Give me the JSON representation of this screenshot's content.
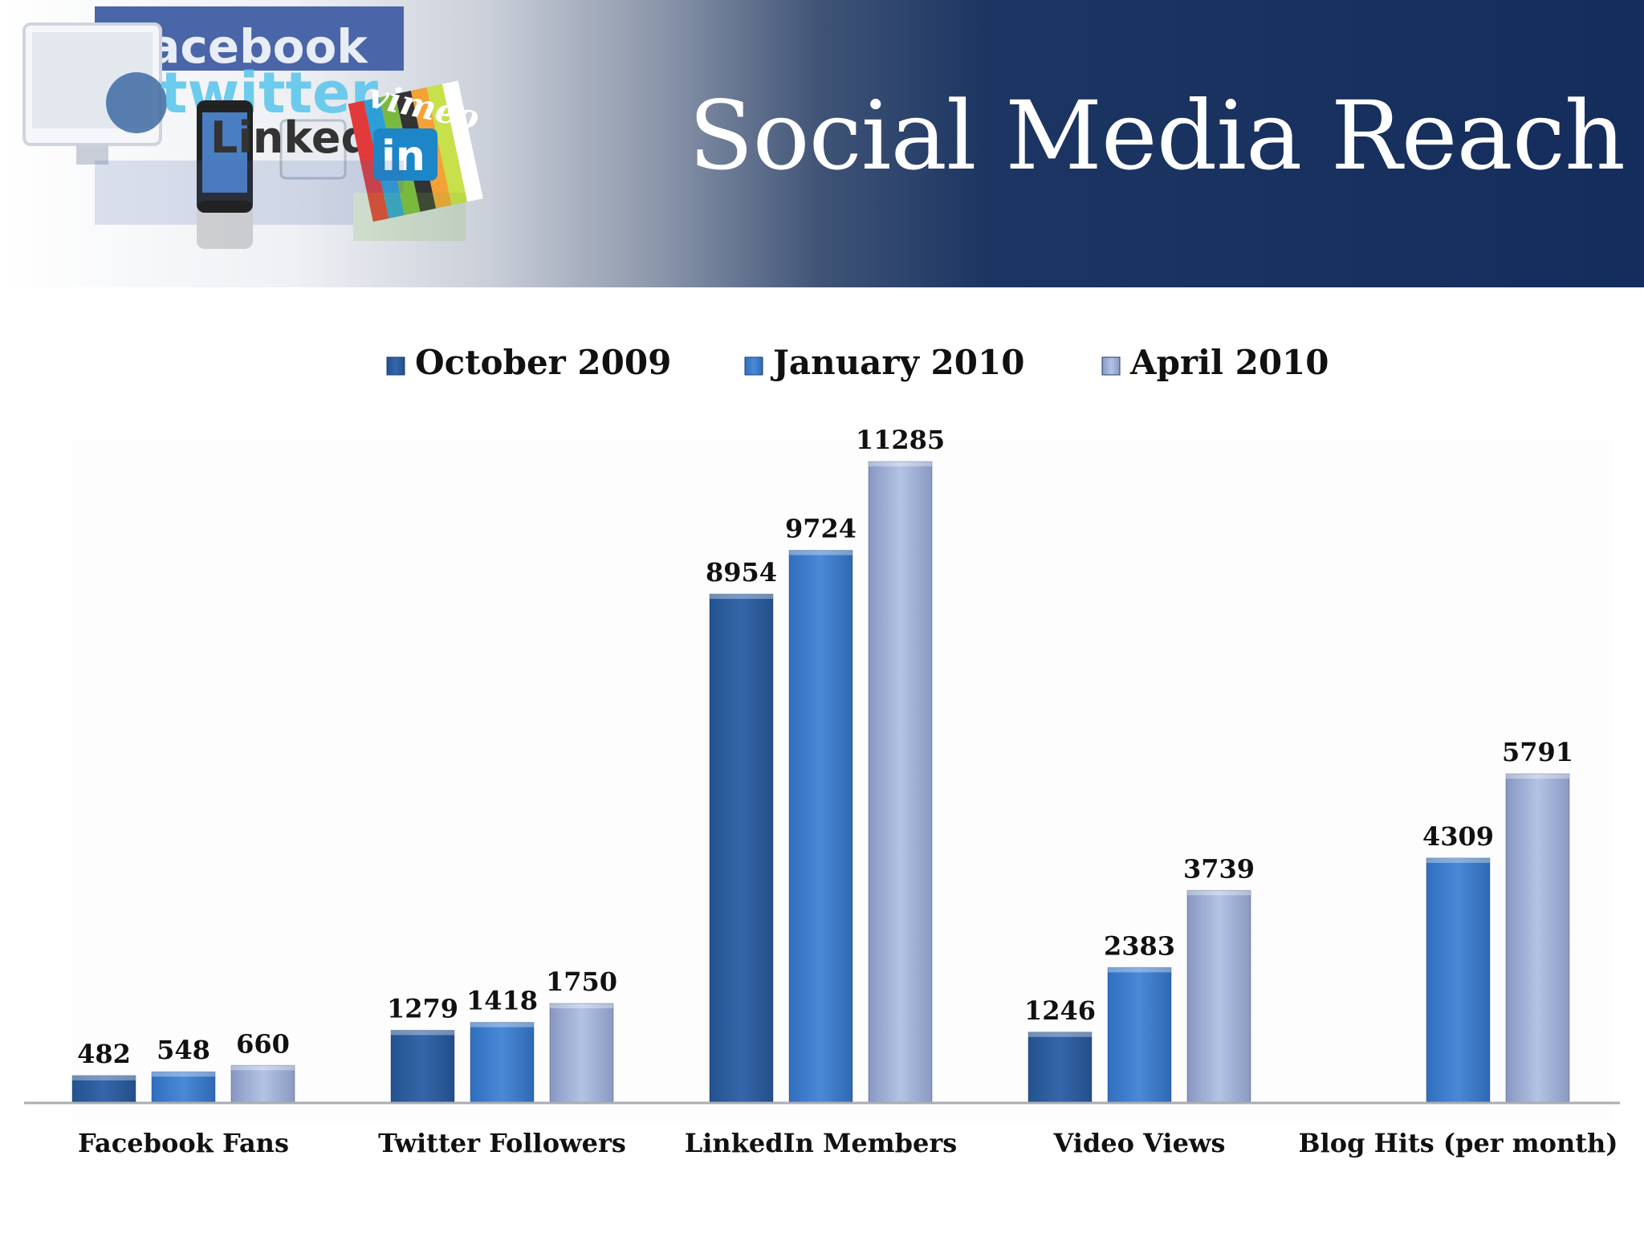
{
  "slide": {
    "title": "Social Media Reach",
    "logos": [
      "facebook",
      "twitter",
      "Linked",
      "vimeo",
      "in"
    ]
  },
  "colors": {
    "banner_dark": "#142d5c",
    "series": [
      "#2e5fa3",
      "#3d7dd0",
      "#a9b9dc"
    ]
  },
  "chart_data": {
    "type": "bar",
    "categories": [
      "Facebook Fans",
      "Twitter Followers",
      "LinkedIn Members",
      "Video Views",
      "Blog Hits (per month)"
    ],
    "series": [
      {
        "name": "October 2009",
        "values": [
          482,
          1279,
          8954,
          1246,
          null
        ]
      },
      {
        "name": "January 2010",
        "values": [
          548,
          1418,
          9724,
          2383,
          4309
        ]
      },
      {
        "name": "April 2010",
        "values": [
          660,
          1750,
          11285,
          3739,
          5791
        ]
      }
    ],
    "ylim": [
      0,
      11285
    ],
    "data_labels": true,
    "grid": false,
    "legend": "top"
  }
}
